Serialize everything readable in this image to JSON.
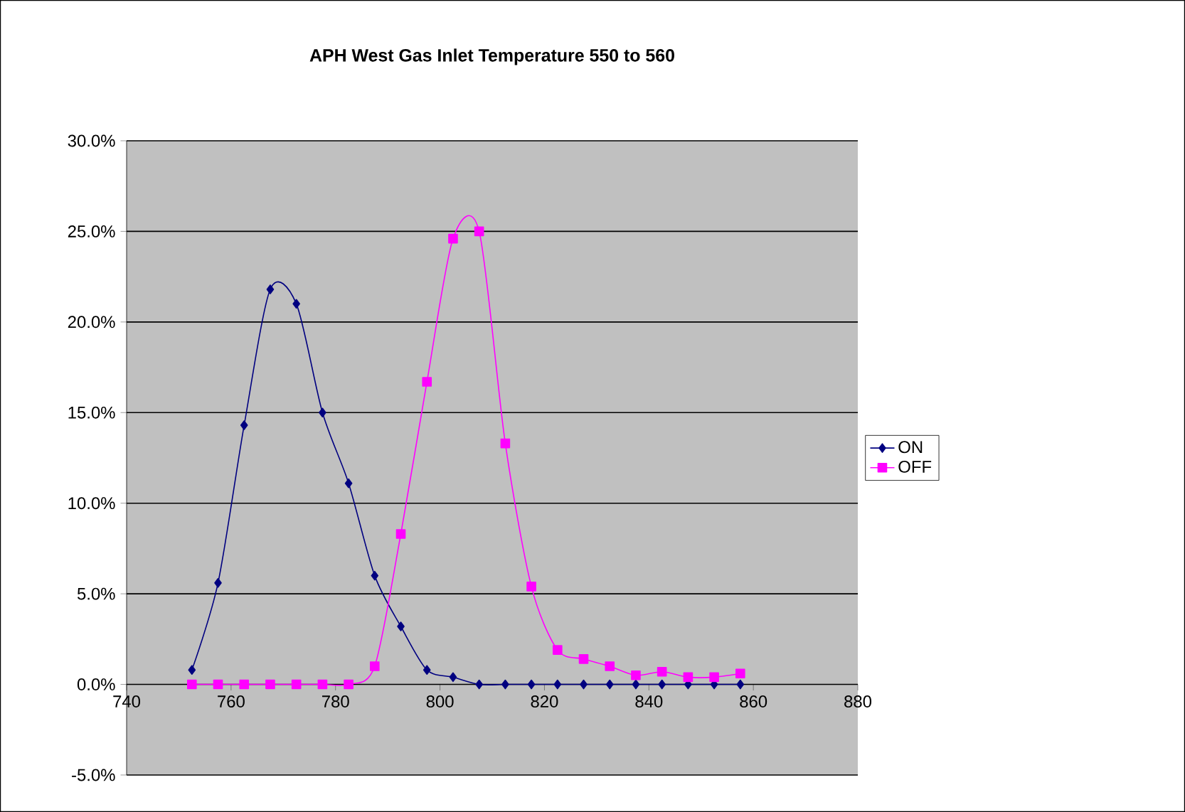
{
  "chart_data": {
    "type": "line",
    "title": "APH West Gas Inlet Temperature 550 to 560",
    "x": [
      752.5,
      757.5,
      762.5,
      767.5,
      772.5,
      777.5,
      782.5,
      787.5,
      792.5,
      797.5,
      802.5,
      807.5,
      812.5,
      817.5,
      822.5,
      827.5,
      832.5,
      837.5,
      842.5,
      847.5,
      852.5,
      857.5
    ],
    "series": [
      {
        "name": "ON",
        "color": "#000080",
        "marker": "diamond",
        "values": [
          0.8,
          5.6,
          14.3,
          21.8,
          21.0,
          15.0,
          11.1,
          6.0,
          3.2,
          0.8,
          0.4,
          0,
          0,
          0,
          0,
          0,
          0,
          0,
          0,
          0,
          0,
          0
        ]
      },
      {
        "name": "OFF",
        "color": "#ff00ff",
        "marker": "square",
        "values": [
          0,
          0,
          0,
          0,
          0,
          0,
          0,
          1.0,
          8.3,
          16.7,
          24.6,
          25.0,
          13.3,
          5.4,
          1.9,
          1.4,
          1.0,
          0.5,
          0.7,
          0.4,
          0.4,
          0.6
        ]
      }
    ],
    "xlim": [
      740,
      880
    ],
    "xticks": [
      740,
      760,
      780,
      800,
      820,
      840,
      860,
      880
    ],
    "ylim": [
      -5,
      30
    ],
    "yticks": [
      {
        "value": -5,
        "label": "-5.0%"
      },
      {
        "value": 0,
        "label": "0.0%"
      },
      {
        "value": 5,
        "label": "5.0%"
      },
      {
        "value": 10,
        "label": "10.0%"
      },
      {
        "value": 15,
        "label": "15.0%"
      },
      {
        "value": 20,
        "label": "20.0%"
      },
      {
        "value": 25,
        "label": "25.0%"
      },
      {
        "value": 30,
        "label": "30.0%"
      }
    ],
    "grid": "y",
    "legend": "right",
    "line_style": "solid"
  }
}
